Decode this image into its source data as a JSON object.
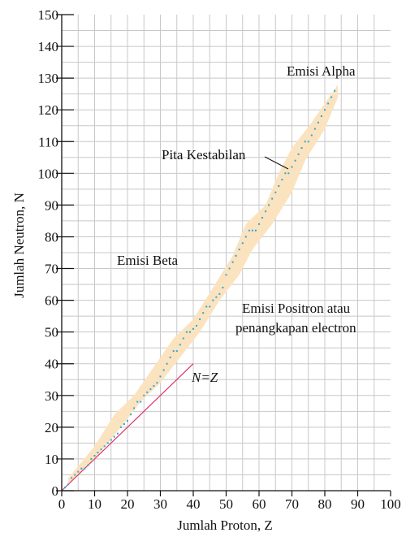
{
  "chart_data": {
    "type": "scatter",
    "xlabel": "Jumlah Proton, Z",
    "ylabel": "Jumlah Neutron, N",
    "xlim": [
      0,
      100
    ],
    "ylim": [
      0,
      150
    ],
    "xticks": [
      0,
      10,
      20,
      30,
      40,
      50,
      60,
      70,
      80,
      90,
      100
    ],
    "yticks": [
      0,
      10,
      20,
      30,
      40,
      50,
      60,
      70,
      80,
      90,
      100,
      110,
      120,
      130,
      140,
      150
    ],
    "grid": true,
    "colors": {
      "band": "#fbe3bf",
      "points": "#29a8d8",
      "nz_line": "#e0306a",
      "grid": "#c8c8c8"
    },
    "annotations": {
      "alpha": "Emisi Alpha",
      "band": "Pita Kestabilan",
      "beta": "Emisi Beta",
      "positron_line1": "Emisi Positron atau",
      "positron_line2": "penangkapan electron",
      "nz": "N=Z"
    },
    "nz_line": {
      "x": [
        0,
        40
      ],
      "y": [
        0,
        40
      ]
    },
    "stability_band": {
      "upper": [
        [
          2,
          4
        ],
        [
          10,
          14
        ],
        [
          16,
          24
        ],
        [
          22,
          30
        ],
        [
          30,
          42
        ],
        [
          34,
          48
        ],
        [
          40,
          54
        ],
        [
          46,
          64
        ],
        [
          52,
          74
        ],
        [
          56,
          84
        ],
        [
          62,
          90
        ],
        [
          66,
          100
        ],
        [
          70,
          108
        ],
        [
          76,
          116
        ],
        [
          84,
          128
        ]
      ],
      "lower": [
        [
          84,
          124
        ],
        [
          80,
          114
        ],
        [
          74,
          104
        ],
        [
          70,
          94
        ],
        [
          64,
          84
        ],
        [
          58,
          76
        ],
        [
          54,
          68
        ],
        [
          48,
          60
        ],
        [
          42,
          50
        ],
        [
          36,
          42
        ],
        [
          30,
          34
        ],
        [
          24,
          28
        ],
        [
          18,
          20
        ],
        [
          10,
          10
        ],
        [
          2,
          2
        ]
      ]
    },
    "stable_nuclei": {
      "x": [
        1,
        2,
        3,
        4,
        5,
        6,
        7,
        8,
        9,
        10,
        11,
        12,
        13,
        14,
        15,
        16,
        17,
        18,
        19,
        20,
        21,
        22,
        23,
        24,
        25,
        26,
        27,
        28,
        29,
        30,
        31,
        32,
        33,
        34,
        35,
        36,
        37,
        38,
        39,
        40,
        41,
        42,
        43,
        44,
        45,
        46,
        47,
        48,
        49,
        50,
        51,
        52,
        53,
        54,
        55,
        56,
        57,
        58,
        59,
        60,
        61,
        62,
        63,
        64,
        65,
        66,
        67,
        68,
        69,
        70,
        71,
        72,
        73,
        74,
        75,
        76,
        77,
        78,
        79,
        80,
        81,
        82,
        83
      ],
      "y": [
        1,
        2,
        4,
        5,
        6,
        7,
        7,
        8,
        10,
        11,
        12,
        13,
        14,
        15,
        16,
        17,
        18,
        20,
        21,
        22,
        24,
        26,
        28,
        28,
        30,
        31,
        32,
        33,
        34,
        36,
        38,
        40,
        42,
        44,
        44,
        46,
        48,
        50,
        50,
        51,
        52,
        54,
        56,
        58,
        58,
        60,
        61,
        62,
        64,
        68,
        70,
        72,
        74,
        76,
        78,
        80,
        82,
        82,
        82,
        84,
        86,
        88,
        90,
        92,
        94,
        96,
        98,
        100,
        100,
        102,
        104,
        106,
        108,
        110,
        110,
        112,
        114,
        116,
        118,
        120,
        122,
        124,
        126
      ]
    }
  }
}
